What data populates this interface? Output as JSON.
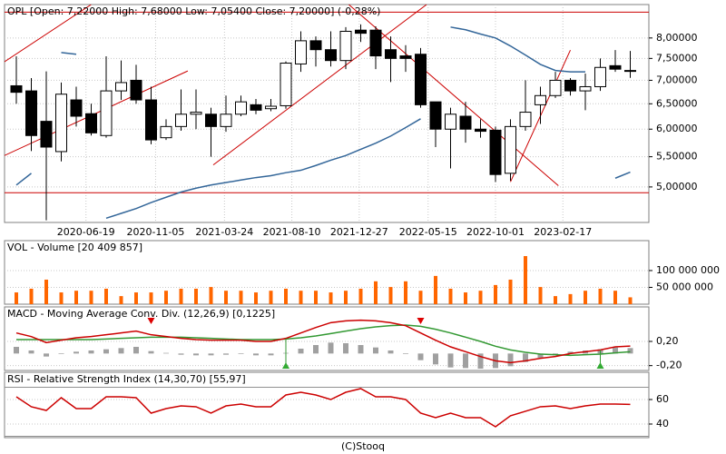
{
  "footer": "(C)Stooq",
  "chart_data": [
    {
      "type": "candlestick",
      "title": "OPL [Open: 7,22000 High: 7,68000 Low: 7,05400 Close: 7,20000] (-0,28%)",
      "categories": [
        null,
        null,
        null,
        null,
        null,
        null,
        null,
        null,
        null,
        null,
        null,
        null,
        null,
        null,
        null,
        null,
        null,
        null,
        null,
        null,
        null,
        null,
        null,
        null,
        null,
        null,
        null,
        null,
        null,
        null,
        null,
        null,
        null,
        null,
        null,
        null,
        null,
        null,
        null,
        null,
        null,
        null
      ],
      "xticks": [
        {
          "value": 4.65,
          "label": "2020-06-19"
        },
        {
          "value": 9.3,
          "label": "2020-11-05"
        },
        {
          "value": 13.9,
          "label": "2021-03-24"
        },
        {
          "value": 18.4,
          "label": "2021-08-10"
        },
        {
          "value": 22.9,
          "label": "2021-12-27"
        },
        {
          "value": 27.5,
          "label": "2022-05-15"
        },
        {
          "value": 32.0,
          "label": "2022-10-01"
        },
        {
          "value": 36.5,
          "label": "2023-02-17"
        }
      ],
      "open": [
        6.88,
        6.77,
        6.15,
        5.59,
        6.58,
        6.3,
        5.88,
        6.77,
        7.0,
        6.58,
        5.84,
        6.05,
        6.29,
        6.29,
        6.05,
        6.29,
        6.48,
        6.4,
        6.46,
        7.37,
        7.93,
        7.71,
        7.45,
        8.2,
        8.2,
        7.71,
        7.56,
        7.6,
        6.54,
        6.0,
        6.25,
        6.0,
        5.98,
        5.22,
        6.05,
        6.48,
        6.67,
        7.0,
        6.77,
        6.86,
        7.33,
        7.22
      ],
      "high": [
        7.55,
        7.05,
        7.2,
        6.95,
        6.86,
        6.5,
        7.55,
        7.45,
        7.35,
        6.86,
        6.19,
        6.8,
        6.8,
        6.42,
        6.67,
        6.67,
        6.6,
        6.6,
        7.43,
        8.17,
        8.04,
        8.17,
        8.28,
        8.35,
        8.3,
        8.04,
        7.82,
        7.75,
        6.54,
        6.42,
        6.54,
        6.19,
        6.05,
        6.19,
        7.0,
        6.86,
        7.19,
        7.05,
        7.15,
        7.5,
        7.7,
        7.68
      ],
      "low": [
        6.5,
        5.6,
        4.5,
        5.42,
        6.05,
        5.88,
        5.84,
        6.58,
        6.5,
        5.72,
        5.8,
        5.97,
        6.0,
        5.5,
        5.95,
        6.25,
        6.29,
        6.35,
        6.4,
        7.19,
        7.31,
        7.31,
        7.25,
        7.9,
        7.25,
        6.96,
        7.19,
        6.42,
        5.67,
        5.3,
        5.75,
        5.84,
        5.08,
        5.1,
        5.97,
        6.1,
        6.62,
        6.67,
        6.37,
        6.77,
        7.19,
        7.054
      ],
      "close": [
        6.74,
        5.88,
        5.67,
        6.7,
        6.25,
        5.93,
        6.77,
        6.95,
        6.58,
        5.8,
        6.05,
        6.29,
        6.33,
        6.05,
        6.29,
        6.54,
        6.37,
        6.45,
        7.39,
        7.93,
        7.71,
        7.45,
        8.17,
        8.12,
        7.56,
        7.5,
        7.5,
        6.48,
        6.0,
        6.29,
        6.0,
        5.96,
        5.2,
        6.05,
        6.33,
        6.67,
        7.0,
        6.77,
        6.86,
        7.29,
        7.25,
        7.2
      ],
      "ma": {
        "color": "#336699",
        "values": [
          5.03,
          5.22,
          null,
          7.64,
          7.6,
          null,
          4.53,
          4.6,
          4.67,
          4.76,
          4.84,
          4.92,
          4.98,
          5.03,
          5.07,
          5.11,
          5.15,
          5.18,
          5.23,
          5.27,
          5.35,
          5.44,
          5.52,
          5.63,
          5.74,
          5.87,
          6.03,
          6.2,
          null,
          8.28,
          8.21,
          8.1,
          8.0,
          7.8,
          7.58,
          7.36,
          7.22,
          7.19,
          7.19,
          null,
          5.14,
          5.24
        ]
      },
      "trend_lines": [
        [
          [
            -0.8,
            7.42
          ],
          [
            5.0,
            8.89
          ]
        ],
        [
          [
            -0.8,
            5.52
          ],
          [
            11.45,
            7.21
          ]
        ],
        [
          [
            13.15,
            5.36
          ],
          [
            27.4,
            8.89
          ]
        ],
        [
          [
            22.2,
            8.89
          ],
          [
            36.2,
            5.02
          ]
        ],
        [
          [
            33.0,
            5.08
          ],
          [
            37.0,
            7.7
          ]
        ]
      ],
      "hlines": [
        8.68,
        4.91
      ],
      "line_color": "#cc0000",
      "ylim": [
        4.47,
        8.89
      ],
      "log_scale": true,
      "grid": true,
      "yticks": [
        {
          "value": 5,
          "label": "5,00000"
        },
        {
          "value": 5.5,
          "label": "5,50000"
        },
        {
          "value": 6,
          "label": "6,00000"
        },
        {
          "value": 6.5,
          "label": "6,50000"
        },
        {
          "value": 7,
          "label": "7,00000"
        },
        {
          "value": 7.5,
          "label": "7,50000"
        },
        {
          "value": 8,
          "label": "8,00000"
        }
      ]
    },
    {
      "type": "bar",
      "title": "VOL - Volume [20 409 857]",
      "color": "#ff6600",
      "values": [
        35000000,
        46000000,
        73000000,
        35000000,
        40000000,
        40000000,
        46000000,
        24000000,
        35000000,
        35000000,
        40000000,
        46000000,
        46000000,
        51000000,
        40000000,
        40000000,
        35000000,
        40000000,
        46000000,
        40000000,
        40000000,
        35000000,
        40000000,
        46000000,
        68000000,
        51000000,
        68000000,
        40000000,
        84000000,
        46000000,
        35000000,
        40000000,
        57000000,
        73000000,
        143000000,
        51000000,
        24000000,
        30000000,
        40000000,
        46000000,
        40000000,
        20409857
      ],
      "ylim": [
        0,
        189000000
      ],
      "yticks": [
        {
          "value": 100000000,
          "label": "100 000 000"
        },
        {
          "value": 50000000,
          "label": "50 000 000"
        }
      ]
    },
    {
      "type": "macd",
      "title": "MACD - Moving Average Conv. Div. (12,26,9) [0,1225]",
      "macd": {
        "color": "#cc0000",
        "values": [
          0.34,
          0.28,
          0.18,
          0.22,
          0.26,
          0.28,
          0.31,
          0.34,
          0.37,
          0.31,
          0.28,
          0.25,
          0.23,
          0.22,
          0.22,
          0.22,
          0.2,
          0.2,
          0.25,
          0.34,
          0.43,
          0.51,
          0.54,
          0.55,
          0.54,
          0.51,
          0.46,
          0.34,
          0.22,
          0.11,
          0.03,
          -0.05,
          -0.12,
          -0.15,
          -0.12,
          -0.08,
          -0.05,
          0,
          0.03,
          0.06,
          0.11,
          0.1225
        ]
      },
      "signal": {
        "color": "#339933",
        "values": [
          0.23,
          0.23,
          0.23,
          0.23,
          0.23,
          0.23,
          0.24,
          0.25,
          0.26,
          0.27,
          0.27,
          0.27,
          0.26,
          0.25,
          0.24,
          0.23,
          0.23,
          0.23,
          0.24,
          0.26,
          0.29,
          0.33,
          0.37,
          0.41,
          0.44,
          0.46,
          0.47,
          0.45,
          0.4,
          0.34,
          0.27,
          0.2,
          0.12,
          0.06,
          0.02,
          -0.01,
          -0.02,
          -0.03,
          -0.02,
          -0.01,
          0.01,
          0.03
        ]
      },
      "histogram": {
        "color": "#a0a0a0",
        "values": [
          0.11,
          0.05,
          -0.05,
          -0.01,
          0.03,
          0.05,
          0.07,
          0.09,
          0.11,
          0.04,
          0.01,
          -0.02,
          -0.03,
          -0.03,
          -0.02,
          -0.01,
          -0.03,
          -0.03,
          0.01,
          0.08,
          0.14,
          0.18,
          0.17,
          0.14,
          0.1,
          0.05,
          -0.01,
          -0.11,
          -0.18,
          -0.23,
          -0.24,
          -0.25,
          -0.24,
          -0.21,
          -0.14,
          -0.07,
          -0.03,
          0.03,
          0.05,
          0.07,
          0.1,
          0.09
        ]
      },
      "signals": {
        "sell": [
          9,
          27
        ],
        "buy": [
          18,
          39
        ]
      },
      "ylim": [
        -0.28,
        0.77
      ],
      "yticks": [
        {
          "value": 0.2,
          "label": "0,20"
        },
        {
          "value": -0.2,
          "label": "-0,20"
        }
      ]
    },
    {
      "type": "line",
      "title": "RSI - Relative Strength Index (14,30,70) [55,97]",
      "color": "#cc0000",
      "values": [
        62.2,
        54.1,
        51.1,
        61.5,
        52.6,
        52.6,
        62.2,
        62.2,
        61.5,
        48.9,
        52.6,
        54.8,
        54.1,
        48.9,
        54.8,
        56.3,
        54.1,
        54.1,
        63.7,
        65.9,
        63.7,
        60,
        65.9,
        68.9,
        62.2,
        62.2,
        60,
        48.9,
        45.2,
        48.9,
        45.2,
        45.2,
        37.8,
        46.7,
        50.4,
        54.1,
        54.8,
        52.6,
        54.8,
        56.3,
        56.3,
        55.97
      ],
      "levels": [
        30,
        70
      ],
      "ylim": [
        28.9,
        82.2
      ],
      "yticks": [
        60,
        40
      ]
    }
  ]
}
